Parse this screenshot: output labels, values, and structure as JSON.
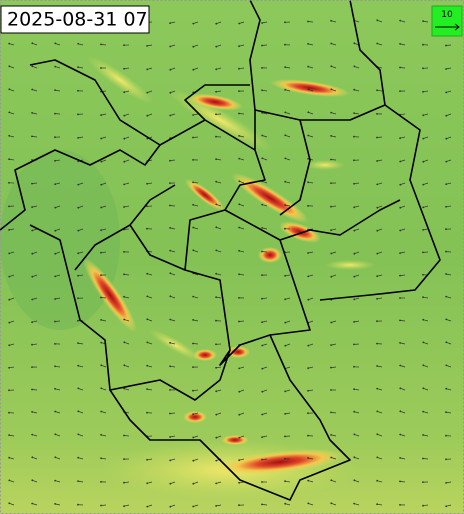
{
  "header": {
    "timestamp": "2025-08-31 07"
  },
  "legend": {
    "label": 10
  }
}
